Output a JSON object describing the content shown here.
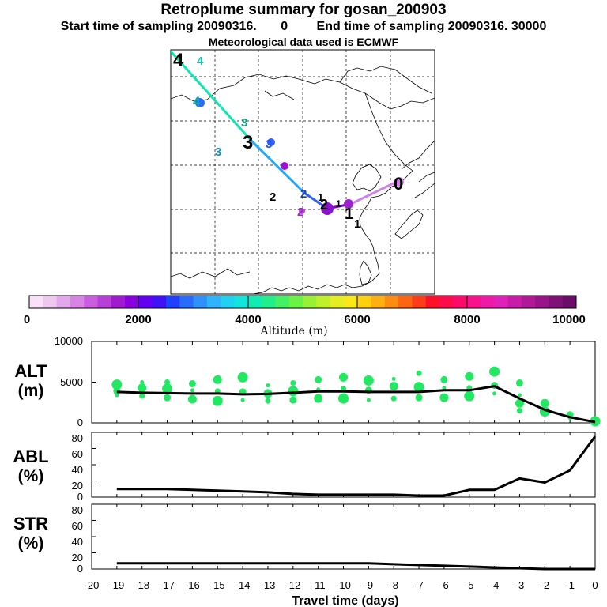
{
  "header": {
    "title": "Retroplume summary for gosan_200903",
    "start_label": "Start time of sampling 20090316.",
    "start_time": "0",
    "end_label": "End time of sampling 20090316. 30000",
    "met_data": "Meteorological data used is ECMWF"
  },
  "colorbar": {
    "ticks": [
      "0",
      "2000",
      "4000",
      "6000",
      "8000",
      "10000"
    ],
    "label": "Altitude (m)",
    "colors": [
      "#f7e0f8",
      "#efc8f2",
      "#e3a8ec",
      "#d884e5",
      "#cb5ee0",
      "#b83ed8",
      "#a21ad0",
      "#8800e0",
      "#6400f0",
      "#4010f8",
      "#2040ff",
      "#2a6bff",
      "#2f90ff",
      "#2fb2ff",
      "#20d2f2",
      "#10e6dc",
      "#10edb4",
      "#20f08a",
      "#40f264",
      "#6af244",
      "#96f232",
      "#c0f028",
      "#e4ee20",
      "#fbe818",
      "#ffd010",
      "#ffb010",
      "#ff8c10",
      "#ff6410",
      "#ff3c18",
      "#ff1028",
      "#ff0a4a",
      "#ff0a6c",
      "#f8108c",
      "#f018a8",
      "#e020b8",
      "#c81ca8",
      "#b01898",
      "#981488",
      "#801078",
      "#6a0c68"
    ]
  },
  "map": {
    "trajectory_labels": [
      "4",
      "4",
      "4",
      "3",
      "3",
      "3",
      "3",
      "2",
      "2",
      "2",
      "2",
      "1",
      "1",
      "1",
      "1",
      "0"
    ],
    "colors": {
      "seg_4_3": "#10e6b0",
      "seg_3_2": "#20a8ff",
      "seg_2_1": "#3060ff",
      "seg_1_0": "#d080e8",
      "release": "#9010d0",
      "violet": "#8000c0"
    }
  },
  "chart_data": [
    {
      "type": "line+scatter",
      "panel": "ALT",
      "ylabel_line1": "ALT",
      "ylabel_line2": "(m)",
      "ylim": [
        0,
        10000
      ],
      "yticks": [
        "0",
        "5000",
        "10000"
      ],
      "x": [
        -19,
        -18,
        -17,
        -16,
        -15,
        -14,
        -13,
        -12,
        -11,
        -10,
        -9,
        -8,
        -7,
        -6,
        -5,
        -4,
        -3,
        -2,
        -1,
        0
      ],
      "values": [
        3800,
        3700,
        3650,
        3600,
        3600,
        3500,
        3550,
        3700,
        3850,
        3850,
        3800,
        3800,
        3800,
        4000,
        4000,
        4500,
        3000,
        1600,
        700,
        100
      ],
      "scatter_color": "#20e860",
      "scatter_points": [
        [
          -19,
          3400
        ],
        [
          -19,
          3900
        ],
        [
          -19,
          4700
        ],
        [
          -18,
          3300
        ],
        [
          -18,
          4300
        ],
        [
          -18,
          5000
        ],
        [
          -17,
          3100
        ],
        [
          -17,
          4200
        ],
        [
          -17,
          5000
        ],
        [
          -16,
          2900
        ],
        [
          -16,
          4000
        ],
        [
          -16,
          4800
        ],
        [
          -15,
          2700
        ],
        [
          -15,
          3900
        ],
        [
          -15,
          5300
        ],
        [
          -14,
          2800
        ],
        [
          -14,
          3800
        ],
        [
          -14,
          5600
        ],
        [
          -13,
          2700
        ],
        [
          -13,
          3600
        ],
        [
          -13,
          4600
        ],
        [
          -12,
          2800
        ],
        [
          -12,
          3900
        ],
        [
          -12,
          4900
        ],
        [
          -11,
          3000
        ],
        [
          -11,
          4100
        ],
        [
          -11,
          5300
        ],
        [
          -10,
          3000
        ],
        [
          -10,
          4200
        ],
        [
          -10,
          5600
        ],
        [
          -9,
          2800
        ],
        [
          -9,
          4000
        ],
        [
          -9,
          5200
        ],
        [
          -8,
          3000
        ],
        [
          -8,
          4500
        ],
        [
          -8,
          5400
        ],
        [
          -7,
          3100
        ],
        [
          -7,
          4400
        ],
        [
          -7,
          6100
        ],
        [
          -6,
          3100
        ],
        [
          -6,
          4300
        ],
        [
          -6,
          5300
        ],
        [
          -5,
          3300
        ],
        [
          -5,
          4300
        ],
        [
          -5,
          5700
        ],
        [
          -4,
          3600
        ],
        [
          -4,
          4600
        ],
        [
          -4,
          6300
        ],
        [
          -3,
          1500
        ],
        [
          -3,
          2400
        ],
        [
          -3,
          3400
        ],
        [
          -3,
          4900
        ],
        [
          -2,
          1400
        ],
        [
          -2,
          1800
        ],
        [
          -2,
          2400
        ],
        [
          -1,
          600
        ],
        [
          -1,
          1000
        ],
        [
          0,
          200
        ],
        [
          0,
          400
        ]
      ]
    },
    {
      "type": "line",
      "panel": "ABL",
      "ylabel_line1": "ABL",
      "ylabel_line2": "(%)",
      "ylim": [
        0,
        80
      ],
      "yticks": [
        "0",
        "20",
        "40",
        "60",
        "80"
      ],
      "x": [
        -19,
        -18,
        -17,
        -16,
        -15,
        -14,
        -13,
        -12,
        -11,
        -10,
        -9,
        -8,
        -7,
        -6,
        -5,
        -4,
        -3,
        -2,
        -1,
        0
      ],
      "values": [
        10,
        10,
        10,
        9,
        8,
        7,
        6,
        4,
        3,
        3,
        3,
        3,
        2,
        2,
        9,
        9,
        23,
        18,
        33,
        75
      ]
    },
    {
      "type": "line",
      "panel": "STR",
      "ylabel_line1": "STR",
      "ylabel_line2": "(%)",
      "ylim": [
        0,
        80
      ],
      "yticks": [
        "0",
        "20",
        "40",
        "60",
        "80"
      ],
      "x": [
        -19,
        -18,
        -17,
        -16,
        -15,
        -14,
        -13,
        -12,
        -11,
        -10,
        -9,
        -8,
        -7,
        -6,
        -5,
        -4,
        -3,
        -2,
        -1,
        0
      ],
      "values": [
        7,
        7,
        7,
        7,
        7,
        7,
        7,
        7,
        7,
        7,
        7,
        6,
        5,
        4,
        3,
        2,
        1,
        0,
        0,
        0
      ]
    }
  ],
  "xaxis": {
    "tick_labels": [
      "-20",
      "-19",
      "-18",
      "-17",
      "-16",
      "-15",
      "-14",
      "-13",
      "-12",
      "-11",
      "-10",
      "-9",
      "-8",
      "-7",
      "-6",
      "-5",
      "-4",
      "-3",
      "-2",
      "-1",
      "0"
    ],
    "label": "Travel time (days)"
  }
}
